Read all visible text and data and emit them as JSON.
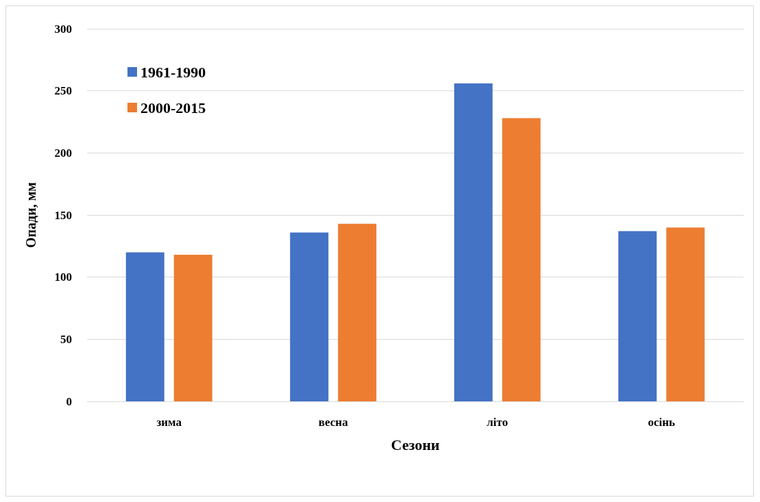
{
  "chart_data": {
    "type": "bar",
    "xlabel": "Сезони",
    "ylabel": "Опади, мм",
    "categories": [
      "зима",
      "весна",
      "літо",
      "осінь"
    ],
    "series": [
      {
        "name": "1961-1990",
        "color": "#4472c4",
        "values": [
          120,
          136,
          256,
          137
        ]
      },
      {
        "name": "2000-2015",
        "color": "#ed7d31",
        "values": [
          118,
          143,
          228,
          140
        ]
      }
    ],
    "ylim": [
      0,
      300
    ],
    "yticks": [
      0,
      50,
      100,
      150,
      200,
      250,
      300
    ],
    "grid": "y",
    "legend": "top left"
  }
}
